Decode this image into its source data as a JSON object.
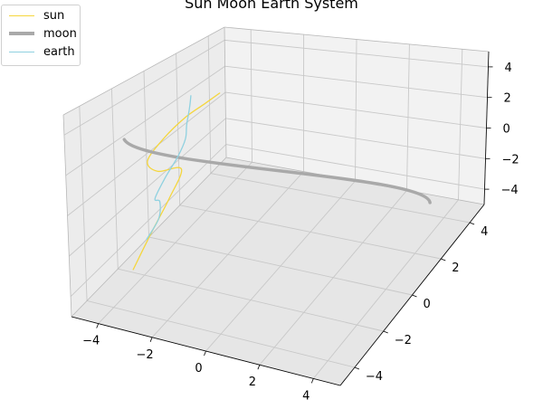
{
  "chart_data": {
    "type": "line3d",
    "title": "Sun Moon Earth System",
    "axes": {
      "x": {
        "range": [
          -5,
          5
        ],
        "ticks": [
          -4,
          -2,
          0,
          2,
          4
        ],
        "tick_labels": [
          "−4",
          "−2",
          "0",
          "2",
          "4"
        ]
      },
      "y": {
        "range": [
          -5,
          5
        ],
        "ticks": [
          -4,
          -2,
          0,
          2,
          4
        ],
        "tick_labels": [
          "−4",
          "−2",
          "0",
          "2",
          "4"
        ]
      },
      "z": {
        "range": [
          -5,
          5
        ],
        "ticks": [
          -4,
          -2,
          0,
          2,
          4
        ],
        "tick_labels": [
          "−4",
          "−2",
          "0",
          "2",
          "4"
        ]
      }
    },
    "grid": true,
    "legend_position": "top-left",
    "series": [
      {
        "name": "sun",
        "color": "#f5d63d",
        "kind": "curve",
        "points": [
          [
            -4,
            -2.7,
            -4.1
          ],
          [
            -4,
            -1.5,
            -3.1
          ],
          [
            -4,
            -0.3,
            -2.1
          ],
          [
            -4,
            0.5,
            -1.0
          ],
          [
            -4,
            -1.0,
            0.0
          ],
          [
            -4,
            -1.6,
            1.0
          ],
          [
            -4,
            -0.5,
            1.6
          ],
          [
            -4,
            0.8,
            1.9
          ],
          [
            -4,
            2.0,
            1.9
          ],
          [
            -4,
            3.0,
            1.9
          ]
        ]
      },
      {
        "name": "moon",
        "color": "#a9a9a9",
        "kind": "line",
        "points": [
          [
            -4,
            -3,
            3
          ],
          [
            4,
            3,
            -3
          ]
        ]
      },
      {
        "name": "earth",
        "color": "#8fd1e0",
        "kind": "curve",
        "points": [
          [
            -4,
            -1.8,
            -3.2
          ],
          [
            -4,
            -1.0,
            -2.7
          ],
          [
            -4,
            -0.9,
            -1.8
          ],
          [
            -4,
            -1.2,
            -1.4
          ],
          [
            -4,
            -0.5,
            -0.7
          ],
          [
            -4,
            0.3,
            -0.1
          ],
          [
            -4,
            0.8,
            0.6
          ],
          [
            -4,
            0.9,
            1.4
          ],
          [
            -4,
            1.1,
            2.3
          ],
          [
            -4,
            1.2,
            3.0
          ]
        ]
      }
    ]
  }
}
